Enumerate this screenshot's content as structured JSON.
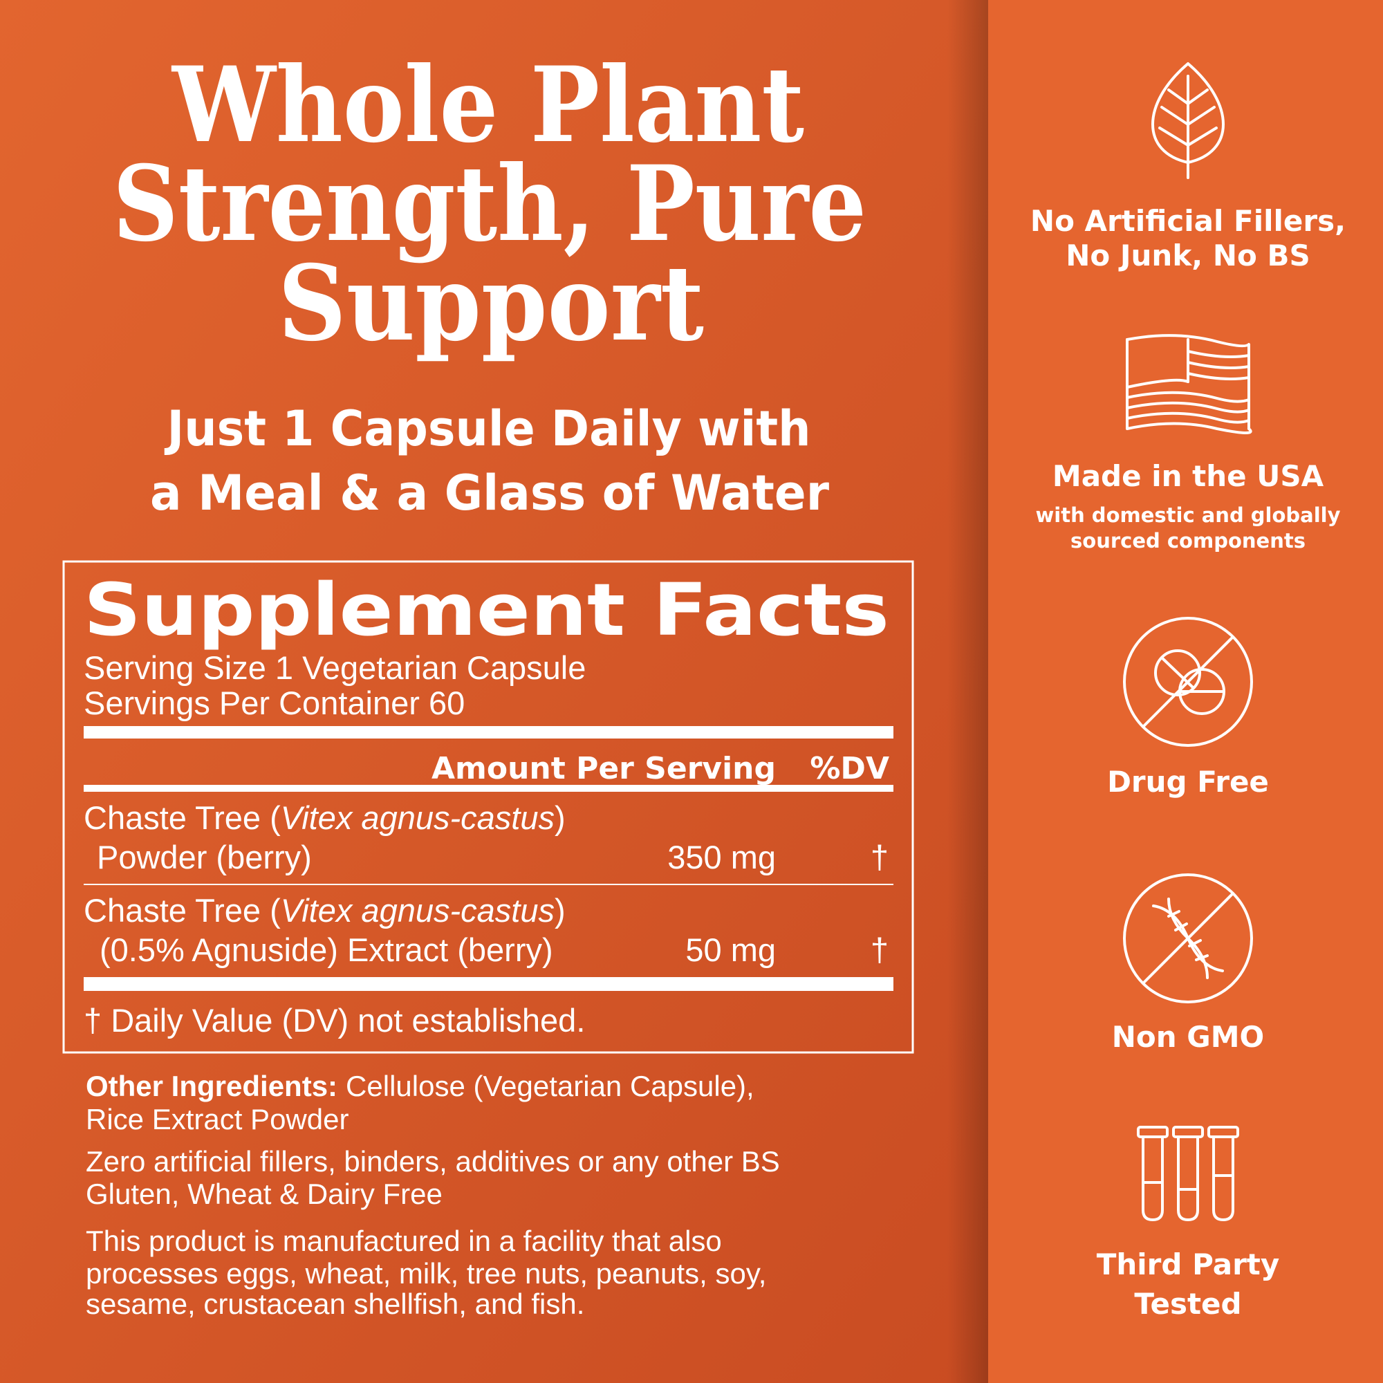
{
  "headline": {
    "lines": [
      "Whole Plant",
      "Strength, Pure",
      "Support"
    ]
  },
  "subheadline": {
    "lines": [
      "Just 1 Capsule Daily with",
      "a Meal & a Glass of Water"
    ]
  },
  "supplement_facts": {
    "title": "Supplement Facts",
    "serving_size": "Serving Size 1 Vegetarian Capsule",
    "servings_per_container": "Servings Per Container 60",
    "header": {
      "amount": "Amount Per Serving",
      "dv": "%DV"
    },
    "rows": [
      {
        "name_start": "Chaste Tree (",
        "name_italic": "Vitex agnus-castus",
        "name_end": ")",
        "name_line2": "Powder (berry)",
        "amount": "350 mg",
        "dv": "†"
      },
      {
        "name_start": "Chaste Tree (",
        "name_italic": "Vitex agnus-castus",
        "name_end": ")",
        "name_line2": "(0.5% Agnuside) Extract (berry)",
        "amount": "50 mg",
        "dv": "†"
      }
    ],
    "footnote": "† Daily Value (DV) not established."
  },
  "other_ingredients": {
    "label": "Other Ingredients:",
    "lines": [
      "Cellulose (Vegetarian Capsule),",
      "Rice Extract Powder"
    ]
  },
  "notes": [
    [
      "Zero artificial fillers, binders, additives or any other BS",
      "Gluten, Wheat & Dairy Free"
    ],
    [
      "This product is manufactured in a facility that also",
      "processes eggs, wheat, milk, tree nuts, peanuts, soy,",
      "sesame, crustacean shellfish, and fish."
    ]
  ],
  "badges": [
    {
      "label": [
        "No Artificial Fillers,",
        "No Junk, No BS"
      ]
    },
    {
      "label": [
        "Made in the USA"
      ],
      "sublabel": [
        "with domestic and globally",
        "sourced components"
      ]
    },
    {
      "label": [
        "Drug Free"
      ]
    },
    {
      "label": [
        "Non GMO"
      ]
    },
    {
      "label": [
        "Third Party",
        "Tested"
      ]
    }
  ]
}
